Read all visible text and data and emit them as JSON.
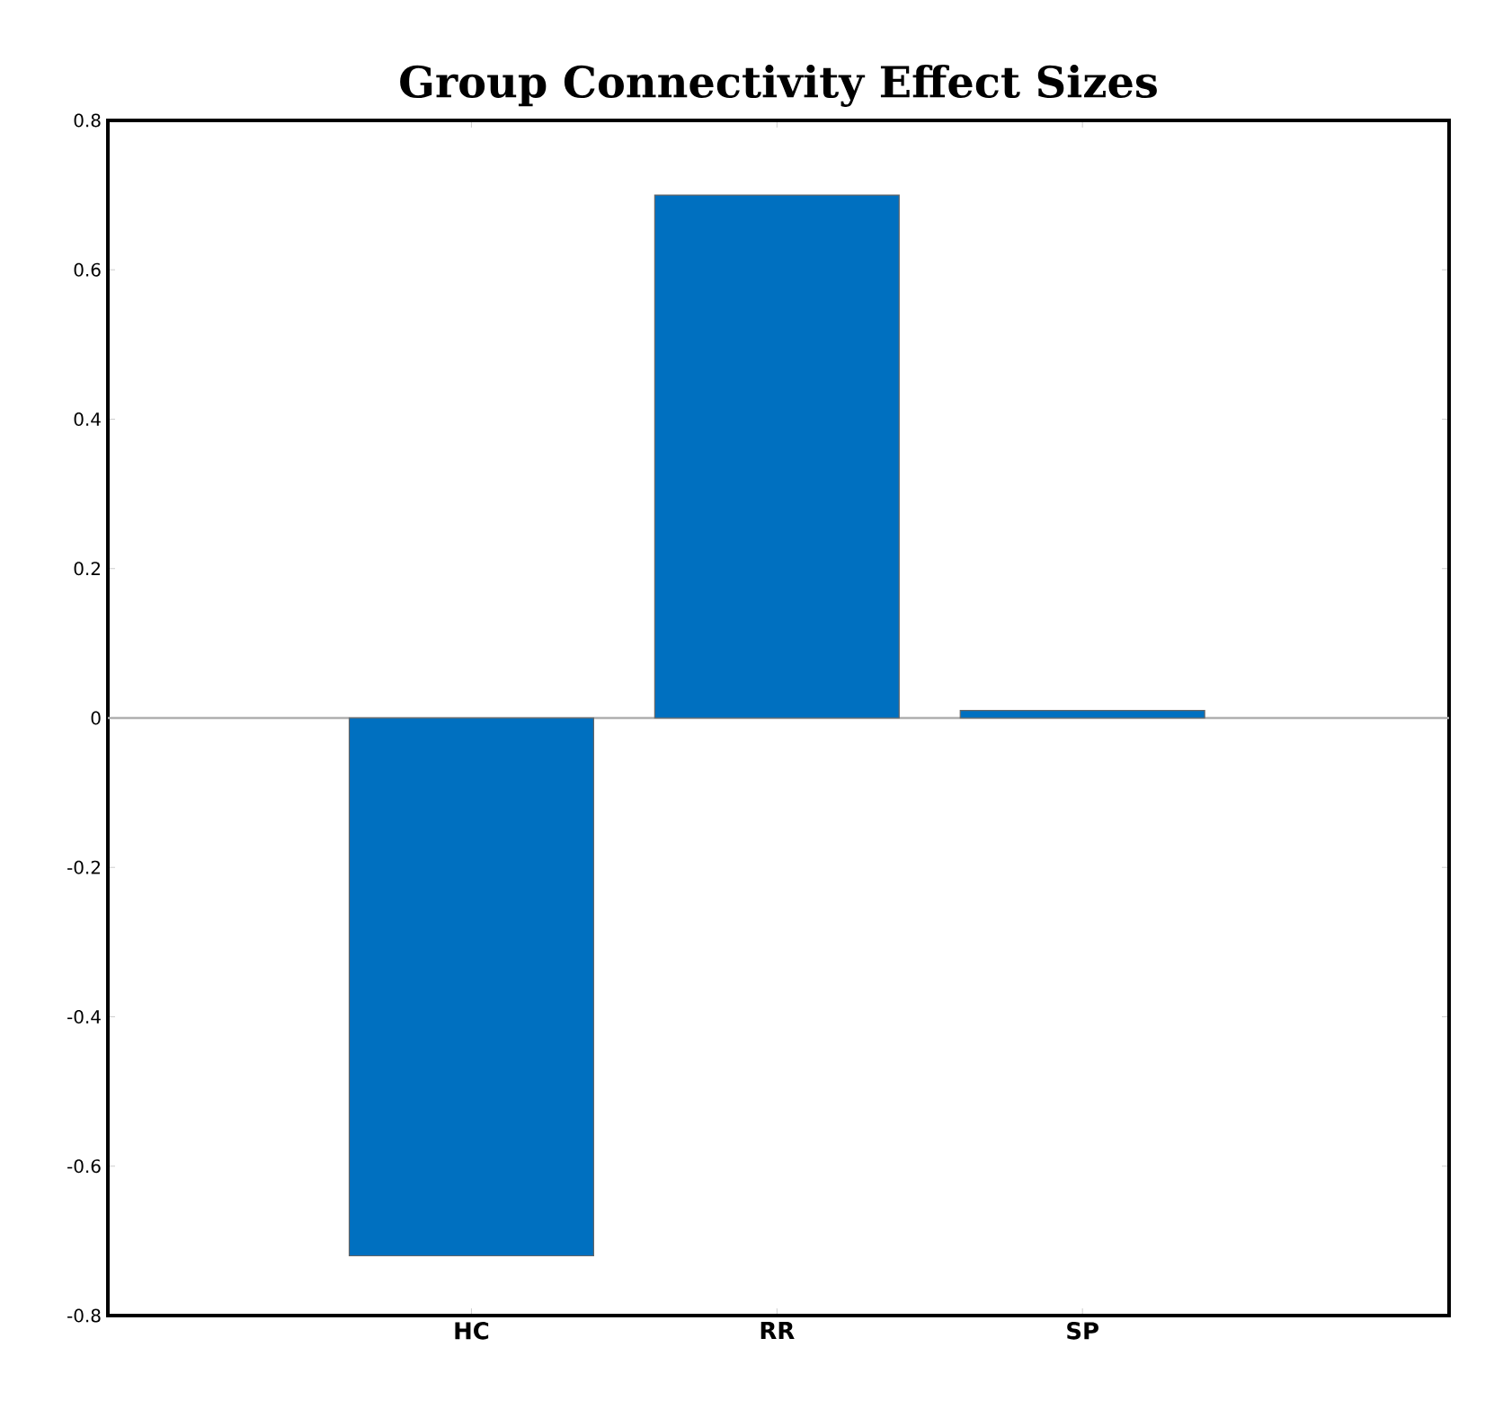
{
  "chart_data": {
    "type": "bar",
    "title": "Group Connectivity Effect Sizes",
    "categories": [
      "HC",
      "RR",
      "SP"
    ],
    "values": [
      -0.72,
      0.7,
      0.01
    ],
    "color": "#0070c0",
    "ylim": [
      -0.8,
      0.8
    ],
    "yticks": [
      -0.8,
      -0.6,
      -0.4,
      -0.2,
      0,
      0.2,
      0.4,
      0.6,
      0.8
    ],
    "ref_lines": [
      {
        "axis": "y",
        "value": 0,
        "color": "#b0b0b0"
      }
    ],
    "grid": false
  }
}
